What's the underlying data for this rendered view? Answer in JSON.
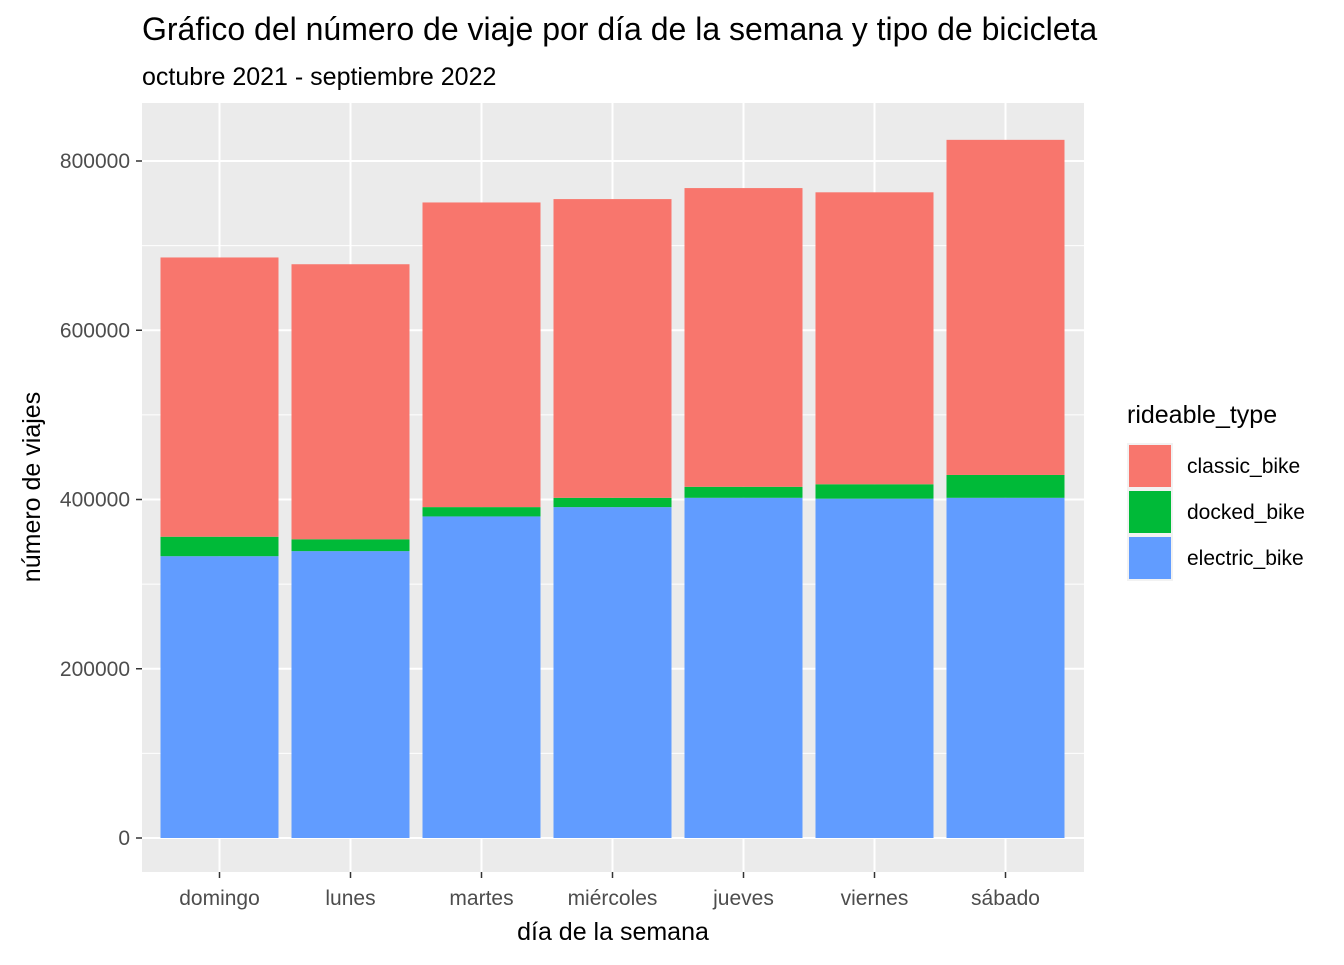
{
  "chart_data": {
    "type": "bar",
    "stacked": true,
    "title": "Gráfico del número de viaje por día de la semana y tipo de bicicleta",
    "subtitle": "octubre 2021 - septiembre 2022",
    "xlabel": "día de la semana",
    "ylabel": "número de viajes",
    "categories": [
      "domingo",
      "lunes",
      "martes",
      "miércoles",
      "jueves",
      "viernes",
      "sábado"
    ],
    "series": [
      {
        "name": "electric_bike",
        "color": "#619CFF",
        "values": [
          333000,
          339000,
          380000,
          391000,
          402000,
          401000,
          402000
        ]
      },
      {
        "name": "docked_bike",
        "color": "#00BA38",
        "values": [
          23000,
          14000,
          11000,
          11000,
          13000,
          17000,
          27000
        ]
      },
      {
        "name": "classic_bike",
        "color": "#F8766D",
        "values": [
          330000,
          325000,
          360000,
          353000,
          353000,
          345000,
          396000
        ]
      }
    ],
    "ylim": [
      0,
      860000
    ],
    "yticks": [
      0,
      200000,
      400000,
      600000,
      800000
    ],
    "ytick_labels": [
      "0",
      "200000",
      "400000",
      "600000",
      "800000"
    ],
    "grid": true,
    "panel_background": "#EBEBEB",
    "legend": {
      "title": "rideable_type",
      "position": "right",
      "items": [
        {
          "label": "classic_bike",
          "color": "#F8766D"
        },
        {
          "label": "docked_bike",
          "color": "#00BA38"
        },
        {
          "label": "electric_bike",
          "color": "#619CFF"
        }
      ]
    }
  }
}
